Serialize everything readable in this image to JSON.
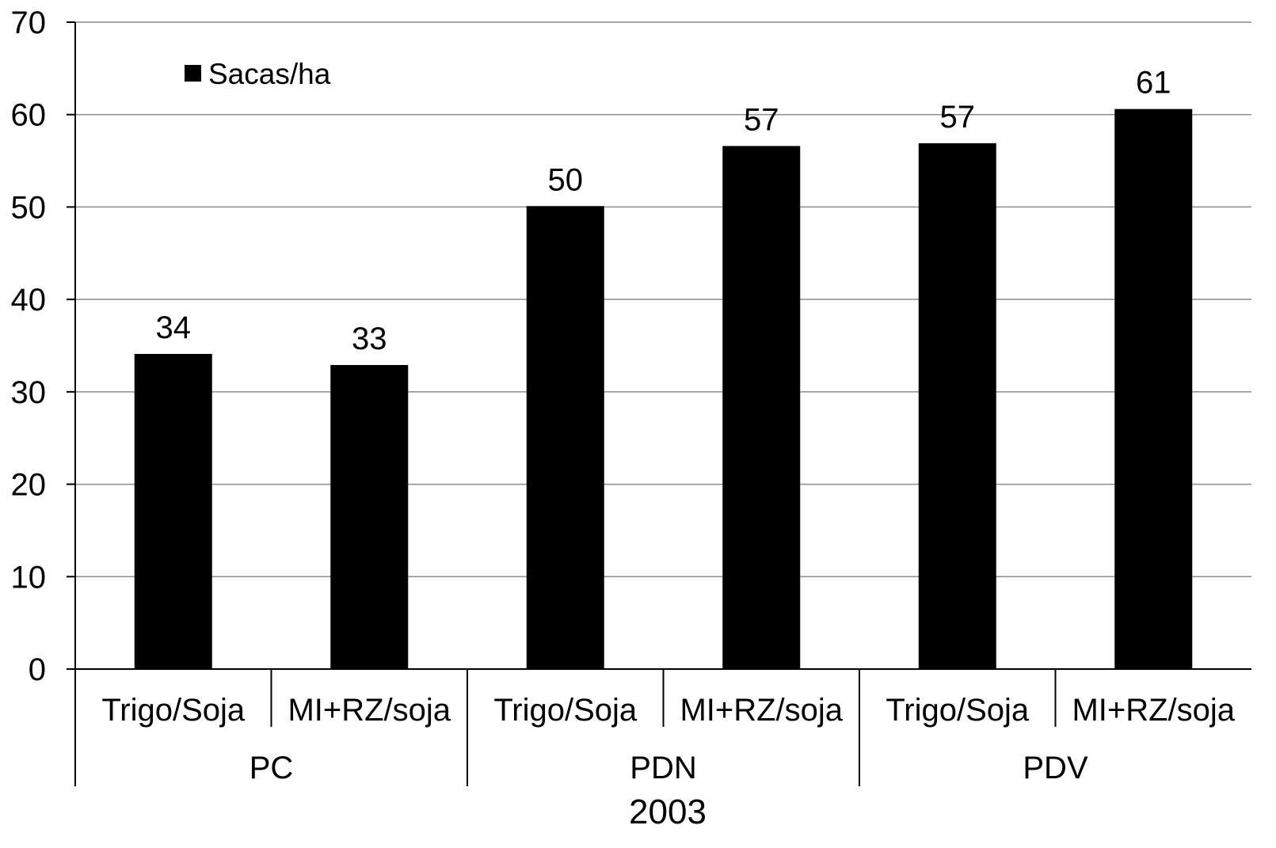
{
  "chart_data": {
    "type": "bar",
    "year_label": "2003",
    "groups": [
      "PC",
      "PDN",
      "PDV"
    ],
    "categories": [
      {
        "group": "PC",
        "label": "Trigo/Soja"
      },
      {
        "group": "PC",
        "label": "MI+RZ/soja"
      },
      {
        "group": "PDN",
        "label": "Trigo/Soja"
      },
      {
        "group": "PDN",
        "label": "MI+RZ/soja"
      },
      {
        "group": "PDV",
        "label": "Trigo/Soja"
      },
      {
        "group": "PDV",
        "label": "MI+RZ/soja"
      }
    ],
    "series": [
      {
        "name": "Sacas/ha",
        "color": "#000000",
        "values": [
          34.1,
          32.9,
          50.1,
          56.6,
          56.9,
          60.6
        ],
        "data_labels": [
          "34",
          "33",
          "50",
          "57",
          "57",
          "61"
        ]
      }
    ],
    "ylim": [
      0,
      70
    ],
    "yticks": [
      0,
      10,
      20,
      30,
      40,
      50,
      60,
      70
    ],
    "grid": true,
    "legend_position": "top-left",
    "xlabel": "",
    "ylabel": "",
    "title": ""
  }
}
